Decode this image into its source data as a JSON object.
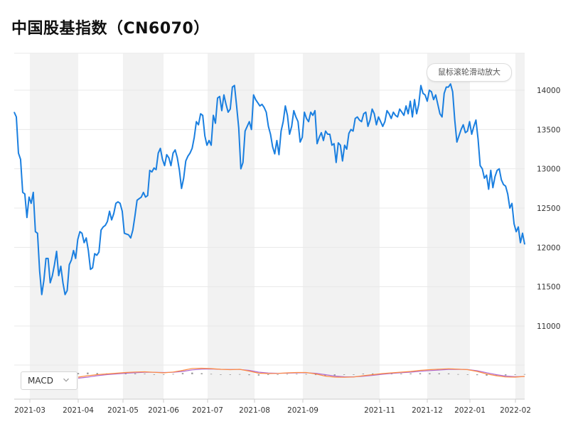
{
  "title": "中国股基指数（CN6070）",
  "zoom_hint": "鼠标滚轮滑动放大",
  "indicator": {
    "selected": "MACD"
  },
  "colors": {
    "price_line": "#1a7fe0",
    "band": "#f2f2f2",
    "grid": "#e8e8e8",
    "macd_dif": "#ff8c42",
    "macd_dea": "#b06ad0",
    "macd_bar": "#999999"
  },
  "chart_data": {
    "type": "line",
    "title": "中国股基指数（CN6070）",
    "xlabel": "",
    "ylabel": "",
    "ylim": [
      10500,
      14500
    ],
    "y_ticks": [
      11000,
      11500,
      12000,
      12500,
      13000,
      13500,
      14000
    ],
    "x_tick_labels": [
      "2021-03",
      "2021-04",
      "2021-05",
      "2021-06",
      "2021-07",
      "2021-08",
      "2021-09",
      "2021-11",
      "2021-12",
      "2022-01",
      "2022-02"
    ],
    "grid": true,
    "legend": "none",
    "series": [
      {
        "values": [
          13720,
          13660,
          13200,
          13120,
          12700,
          12680,
          12380,
          12640,
          12560,
          12700,
          12200,
          12180,
          11700,
          11400,
          11580,
          11860,
          11860,
          11550,
          11640,
          11780,
          11950,
          11640,
          11760,
          11550,
          11400,
          11450,
          11780,
          11840,
          11960,
          11860,
          12100,
          12200,
          12180,
          12060,
          12120,
          11960,
          11720,
          11740,
          11920,
          11900,
          11940,
          12220,
          12260,
          12280,
          12330,
          12460,
          12350,
          12430,
          12560,
          12580,
          12560,
          12460,
          12180,
          12170,
          12160,
          12120,
          12220,
          12400,
          12600,
          12620,
          12640,
          12700,
          12640,
          12660,
          12980,
          12960,
          13010,
          12990,
          13200,
          13260,
          13120,
          13040,
          13180,
          13140,
          13040,
          13200,
          13240,
          13140,
          12980,
          12750,
          12880,
          13100,
          13160,
          13200,
          13260,
          13400,
          13600,
          13560,
          13700,
          13680,
          13420,
          13300,
          13360,
          13300,
          13680,
          13580,
          13900,
          13920,
          13740,
          13940,
          13820,
          13720,
          13760,
          14040,
          14060,
          13800,
          13520,
          13000,
          13080,
          13480,
          13540,
          13600,
          13500,
          13940,
          13880,
          13840,
          13800,
          13820,
          13780,
          13720,
          13540,
          13440,
          13280,
          13190,
          13360,
          13180,
          13480,
          13600,
          13800,
          13680,
          13440,
          13540,
          13740,
          13660,
          13600,
          13340,
          13400,
          13720,
          13640,
          13600,
          13720,
          13680,
          13740,
          13320,
          13400,
          13460,
          13360,
          13480,
          13440,
          13440,
          13300,
          13320,
          13080,
          13330,
          13300,
          13100,
          13300,
          13250,
          13450,
          13500,
          13480,
          13640,
          13660,
          13620,
          13600,
          13700,
          13720,
          13540,
          13620,
          13760,
          13700,
          13560,
          13660,
          13600,
          13540,
          13600,
          13740,
          13700,
          13640,
          13720,
          13680,
          13660,
          13760,
          13720,
          13680,
          13800,
          13700,
          13860,
          13660,
          13880,
          13700,
          13820,
          14060,
          13960,
          13940,
          13860,
          14000,
          13980,
          13880,
          13940,
          13820,
          13700,
          13660,
          13960,
          14040,
          14040,
          14080,
          13980,
          13620,
          13340,
          13420,
          13500,
          13560,
          13460,
          13480,
          13600,
          13440,
          13540,
          13620,
          13380,
          13040,
          13000,
          12880,
          12920,
          12740,
          12980,
          12760,
          12900,
          12980,
          13000,
          12860,
          12800,
          12780,
          12680,
          12500,
          12560,
          12300,
          12200,
          12260,
          12060,
          12180,
          12040
        ]
      }
    ],
    "macd": {
      "dif": [
        -40,
        -20,
        -5,
        5,
        15,
        25,
        32,
        35,
        28,
        20,
        32,
        55,
        82,
        85,
        80,
        70,
        65,
        70,
        45,
        15,
        10,
        12,
        20,
        25,
        25,
        5,
        -25,
        -40,
        -42,
        -38,
        -20,
        -5,
        10,
        20,
        30,
        40,
        55,
        65,
        72,
        78,
        72,
        65,
        40,
        5,
        -20,
        -38,
        -40,
        -30
      ],
      "dea": [
        -55,
        -40,
        -20,
        -5,
        5,
        15,
        22,
        28,
        28,
        25,
        28,
        40,
        62,
        72,
        75,
        70,
        68,
        68,
        55,
        30,
        18,
        14,
        16,
        20,
        22,
        14,
        -5,
        -25,
        -35,
        -36,
        -28,
        -15,
        0,
        12,
        22,
        30,
        42,
        52,
        60,
        68,
        70,
        66,
        50,
        22,
        -5,
        -25,
        -34,
        -32
      ]
    }
  }
}
